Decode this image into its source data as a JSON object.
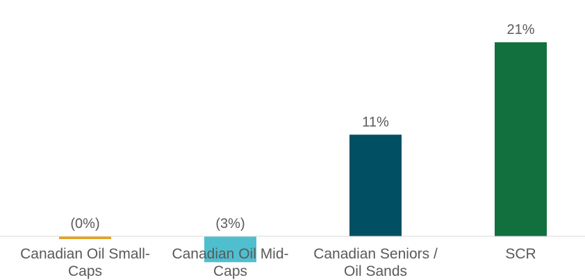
{
  "chart_data": {
    "type": "bar",
    "categories": [
      "Canadian Oil Small-Caps",
      "Canadian Oil Mid-Caps",
      "Canadian Seniors / Oil Sands",
      "SCR"
    ],
    "values": [
      -0.3,
      -2.8,
      11,
      21
    ],
    "value_labels": [
      "(0%)",
      "(3%)",
      "11%",
      "21%"
    ],
    "colors": [
      "#e5a11c",
      "#4fbfcf",
      "#004f63",
      "#12703e"
    ],
    "ylim": [
      -3,
      24
    ]
  }
}
